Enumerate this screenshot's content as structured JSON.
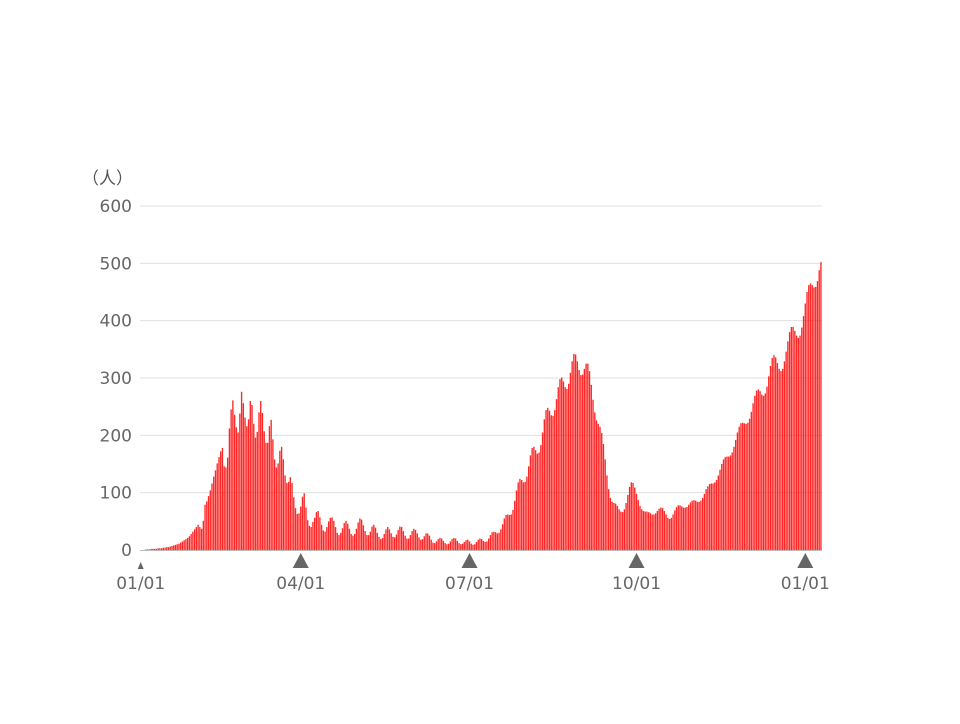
{
  "chart_data": {
    "type": "bar",
    "unit_label": "（人）",
    "y_ticks": [
      0,
      100,
      200,
      300,
      400,
      500,
      600
    ],
    "ylim": [
      0,
      600
    ],
    "grid": true,
    "bar_color": "#ff0000",
    "marker_color": "#666666",
    "x_tick_labels": [
      {
        "label": "01/01",
        "index": 0
      },
      {
        "label": "04/01",
        "index": 92
      },
      {
        "label": "07/01",
        "index": 189
      },
      {
        "label": "10/01",
        "index": 285
      },
      {
        "label": "01/01",
        "index": 382
      }
    ],
    "values": [
      0,
      0,
      0,
      1,
      1,
      1,
      2,
      2,
      2,
      2,
      3,
      3,
      3,
      4,
      4,
      5,
      5,
      6,
      7,
      8,
      9,
      10,
      11,
      13,
      15,
      17,
      19,
      21,
      24,
      28,
      32,
      36,
      40,
      44,
      40,
      37,
      51,
      79,
      85,
      94,
      104,
      116,
      128,
      139,
      151,
      162,
      172,
      178,
      146,
      144,
      161,
      212,
      245,
      261,
      236,
      214,
      205,
      238,
      276,
      256,
      231,
      216,
      228,
      260,
      253,
      220,
      196,
      206,
      240,
      260,
      239,
      207,
      187,
      187,
      216,
      227,
      193,
      158,
      144,
      151,
      173,
      180,
      158,
      130,
      117,
      119,
      127,
      117,
      92,
      73,
      63,
      64,
      76,
      93,
      99,
      74,
      52,
      42,
      40,
      49,
      56,
      66,
      68,
      57,
      44,
      34,
      32,
      40,
      50,
      56,
      57,
      51,
      40,
      30,
      26,
      30,
      38,
      47,
      51,
      46,
      37,
      28,
      25,
      28,
      37,
      48,
      55,
      53,
      43,
      33,
      26,
      26,
      32,
      41,
      44,
      39,
      30,
      23,
      19,
      21,
      28,
      36,
      40,
      36,
      29,
      23,
      22,
      27,
      35,
      41,
      40,
      33,
      25,
      20,
      20,
      26,
      33,
      37,
      35,
      29,
      22,
      18,
      19,
      24,
      29,
      29,
      25,
      18,
      13,
      12,
      15,
      19,
      21,
      20,
      16,
      12,
      10,
      11,
      15,
      19,
      21,
      20,
      16,
      12,
      10,
      11,
      14,
      17,
      18,
      15,
      11,
      9,
      10,
      14,
      18,
      20,
      19,
      16,
      14,
      15,
      20,
      26,
      31,
      32,
      31,
      29,
      30,
      36,
      45,
      55,
      61,
      62,
      61,
      62,
      70,
      86,
      104,
      118,
      124,
      122,
      118,
      119,
      128,
      146,
      165,
      178,
      180,
      174,
      168,
      170,
      183,
      205,
      228,
      244,
      248,
      243,
      235,
      234,
      244,
      263,
      284,
      298,
      301,
      294,
      284,
      281,
      290,
      309,
      329,
      342,
      341,
      329,
      314,
      305,
      306,
      316,
      325,
      325,
      312,
      288,
      262,
      240,
      226,
      220,
      215,
      204,
      185,
      158,
      130,
      106,
      91,
      84,
      82,
      81,
      77,
      71,
      67,
      66,
      71,
      82,
      96,
      110,
      118,
      117,
      109,
      98,
      87,
      77,
      71,
      68,
      67,
      67,
      66,
      64,
      62,
      62,
      64,
      68,
      72,
      74,
      73,
      68,
      62,
      56,
      54,
      56,
      62,
      69,
      75,
      78,
      78,
      76,
      74,
      74,
      75,
      79,
      83,
      86,
      87,
      86,
      84,
      84,
      86,
      91,
      98,
      106,
      111,
      115,
      116,
      116,
      118,
      122,
      130,
      140,
      150,
      158,
      162,
      163,
      163,
      165,
      170,
      180,
      192,
      205,
      215,
      221,
      222,
      221,
      220,
      222,
      229,
      241,
      256,
      269,
      278,
      280,
      277,
      271,
      269,
      273,
      285,
      303,
      321,
      335,
      340,
      336,
      326,
      316,
      312,
      316,
      329,
      346,
      364,
      380,
      389,
      389,
      382,
      374,
      370,
      374,
      388,
      408,
      430,
      450,
      462,
      465,
      462,
      458,
      459,
      469,
      488,
      502
    ]
  }
}
